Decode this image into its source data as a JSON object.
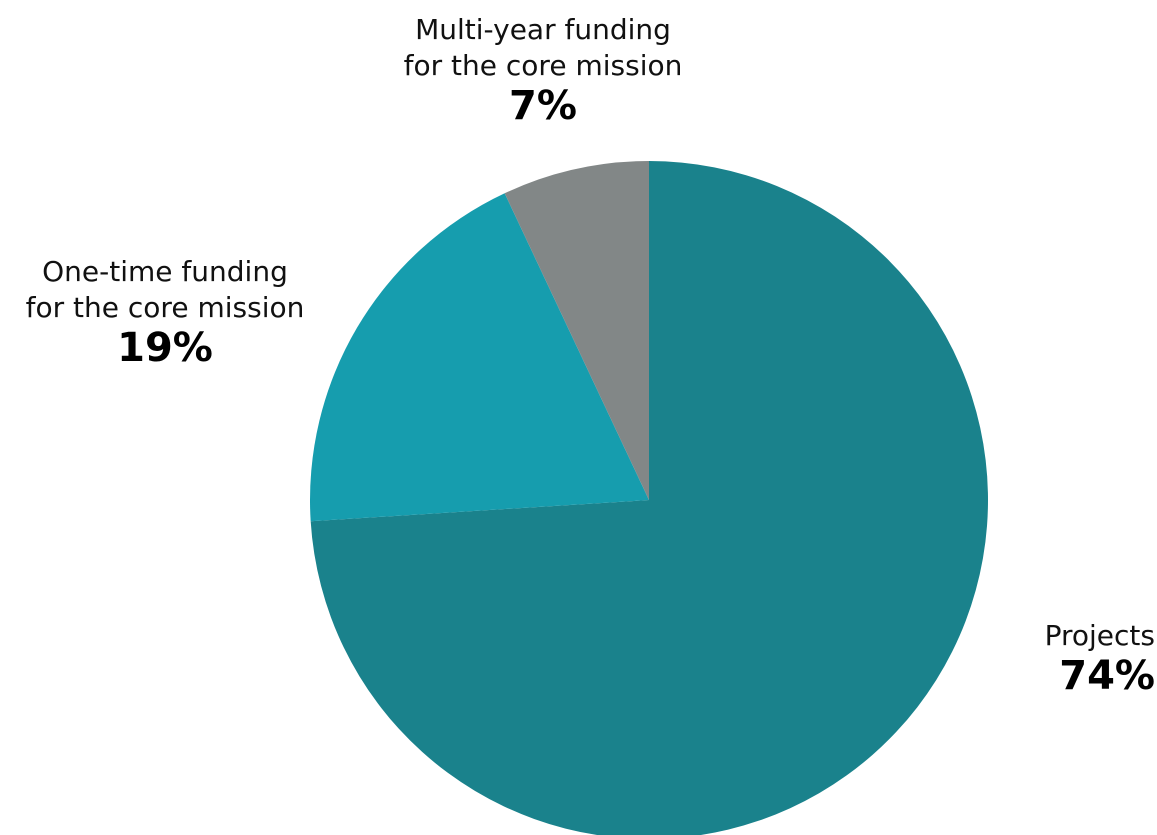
{
  "chart_data": {
    "type": "pie",
    "start_angle_deg": 0,
    "direction": "clockwise",
    "slices": [
      {
        "label_lines": [
          "Projects"
        ],
        "value": 74,
        "value_label": "74%",
        "color": "#1a828c"
      },
      {
        "label_lines": [
          "One-time funding",
          "for the core mission"
        ],
        "value": 19,
        "value_label": "19%",
        "color": "#169dae"
      },
      {
        "label_lines": [
          "Multi-year funding",
          "for the core mission"
        ],
        "value": 7,
        "value_label": "7%",
        "color": "#828787"
      }
    ]
  }
}
